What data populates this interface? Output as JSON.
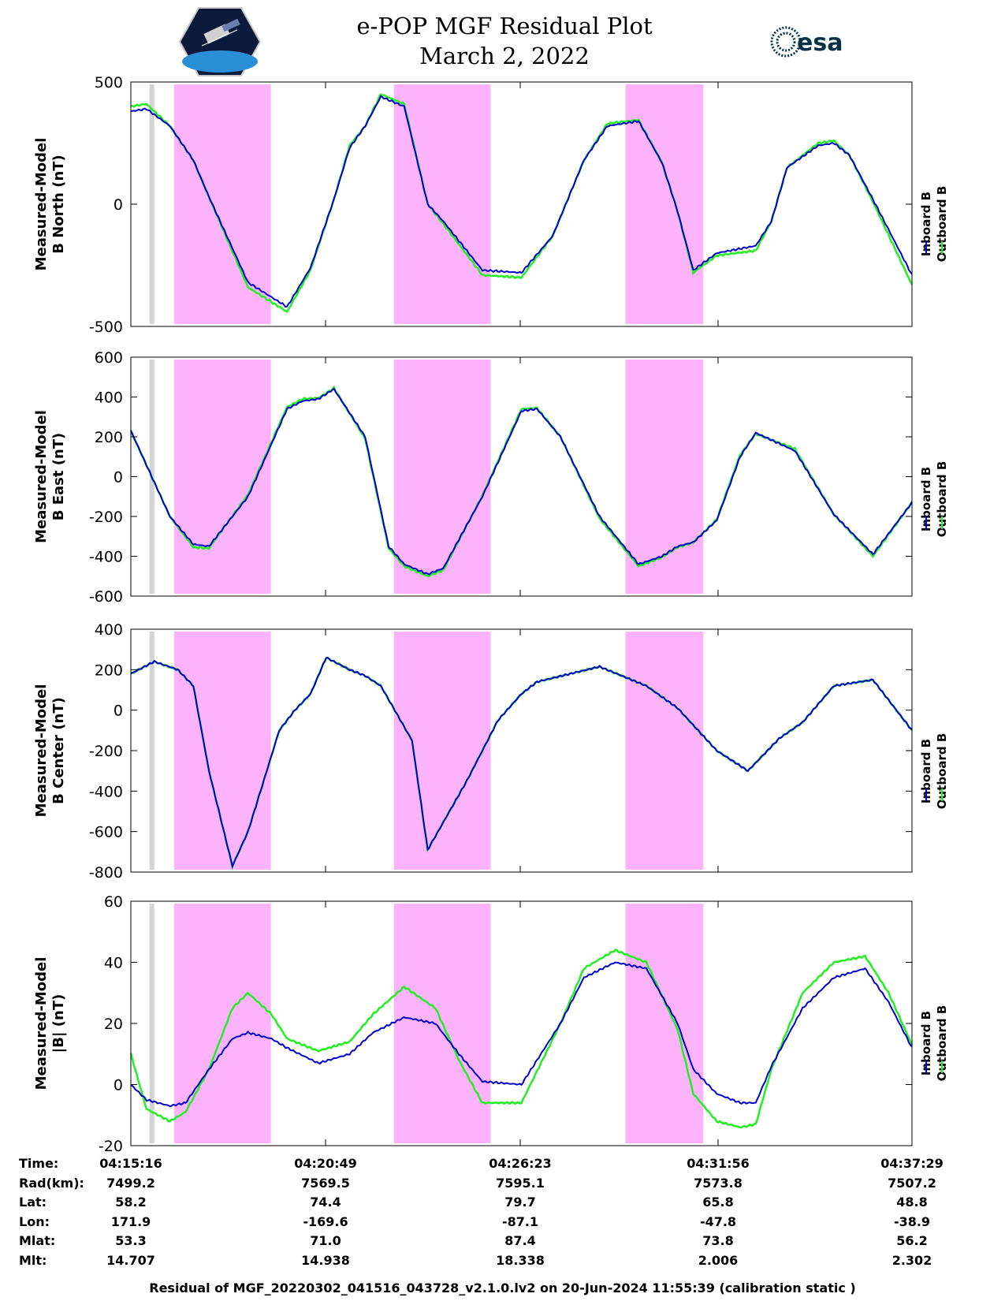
{
  "title": "e-POP MGF Residual Plot",
  "date": "March 2, 2022",
  "logos": {
    "left": "cassiope-satellite-logo",
    "right": "esa"
  },
  "colors": {
    "inboard": "#0000cc",
    "outboard": "#22ee22",
    "shade": "#fcb3fc",
    "gap": "#d3d3d3"
  },
  "legend": [
    "Inboard B",
    "Outboard B"
  ],
  "shaded_intervals_time": [
    [
      "04:16:30",
      "04:19:15"
    ],
    [
      "04:22:45",
      "04:25:30"
    ],
    [
      "04:29:20",
      "04:31:33"
    ]
  ],
  "gray_marker_time": "04:15:52",
  "chart_data": [
    {
      "type": "line",
      "ylabel": [
        "Measured-Model",
        "B North (nT)"
      ],
      "ylim": [
        -500,
        500
      ],
      "yticks": [
        "500",
        "0",
        "-500"
      ],
      "ytick_values": [
        500,
        0,
        -500
      ],
      "x": [
        0,
        0.02,
        0.05,
        0.08,
        0.1,
        0.15,
        0.2,
        0.23,
        0.26,
        0.28,
        0.3,
        0.32,
        0.35,
        0.38,
        0.4,
        0.45,
        0.5,
        0.54,
        0.58,
        0.61,
        0.65,
        0.68,
        0.7,
        0.72,
        0.75,
        0.8,
        0.82,
        0.84,
        0.88,
        0.9,
        0.92,
        0.95,
        1.0
      ],
      "series": [
        {
          "name": "Inboard B",
          "values": [
            380,
            390,
            320,
            180,
            30,
            -320,
            -420,
            -260,
            20,
            230,
            320,
            440,
            400,
            0,
            -70,
            -270,
            -280,
            -130,
            180,
            320,
            340,
            170,
            -30,
            -270,
            -200,
            -170,
            -70,
            150,
            240,
            250,
            200,
            20,
            -290
          ]
        },
        {
          "name": "Outboard B",
          "values": [
            400,
            410,
            320,
            180,
            30,
            -340,
            -440,
            -270,
            20,
            240,
            320,
            450,
            410,
            0,
            -80,
            -290,
            -300,
            -130,
            180,
            330,
            345,
            170,
            -30,
            -280,
            -210,
            -190,
            -70,
            150,
            250,
            260,
            200,
            10,
            -330
          ]
        }
      ]
    },
    {
      "type": "line",
      "ylabel": [
        "Measured-Model",
        "B East (nT)"
      ],
      "ylim": [
        -600,
        600
      ],
      "yticks": [
        "600",
        "400",
        "200",
        "0",
        "-200",
        "-400",
        "-600"
      ],
      "ytick_values": [
        600,
        400,
        200,
        0,
        -200,
        -400,
        -600
      ],
      "x": [
        0,
        0.05,
        0.08,
        0.1,
        0.15,
        0.2,
        0.22,
        0.24,
        0.26,
        0.3,
        0.33,
        0.35,
        0.38,
        0.4,
        0.45,
        0.5,
        0.52,
        0.55,
        0.6,
        0.65,
        0.68,
        0.7,
        0.72,
        0.75,
        0.78,
        0.8,
        0.85,
        0.9,
        0.95,
        1.0
      ],
      "series": [
        {
          "name": "Inboard B",
          "values": [
            230,
            -200,
            -340,
            -350,
            -100,
            340,
            380,
            390,
            440,
            200,
            -350,
            -440,
            -490,
            -460,
            -100,
            330,
            340,
            200,
            -200,
            -440,
            -400,
            -350,
            -330,
            -220,
            100,
            220,
            130,
            -190,
            -390,
            -130
          ]
        },
        {
          "name": "Outboard B",
          "values": [
            230,
            -200,
            -355,
            -360,
            -90,
            350,
            390,
            395,
            445,
            190,
            -360,
            -450,
            -500,
            -470,
            -95,
            340,
            345,
            200,
            -210,
            -450,
            -405,
            -355,
            -330,
            -215,
            110,
            215,
            140,
            -190,
            -400,
            -130
          ]
        }
      ]
    },
    {
      "type": "line",
      "ylabel": [
        "Measured-Model",
        "B Center (nT)"
      ],
      "ylim": [
        -800,
        400
      ],
      "yticks": [
        "400",
        "200",
        "0",
        "-200",
        "-400",
        "-600",
        "-800"
      ],
      "ytick_values": [
        400,
        200,
        0,
        -200,
        -400,
        -600,
        -800
      ],
      "x": [
        0,
        0.03,
        0.06,
        0.08,
        0.1,
        0.13,
        0.15,
        0.19,
        0.21,
        0.23,
        0.25,
        0.28,
        0.3,
        0.32,
        0.36,
        0.38,
        0.43,
        0.47,
        0.5,
        0.52,
        0.6,
        0.66,
        0.7,
        0.75,
        0.79,
        0.83,
        0.86,
        0.9,
        0.95,
        1.0
      ],
      "series": [
        {
          "name": "Inboard B",
          "values": [
            180,
            240,
            200,
            120,
            -300,
            -770,
            -600,
            -100,
            0,
            80,
            260,
            200,
            170,
            120,
            -150,
            -690,
            -350,
            -50,
            80,
            140,
            215,
            120,
            10,
            -200,
            -300,
            -140,
            -60,
            120,
            150,
            -100
          ]
        },
        {
          "name": "Outboard B",
          "values": [
            180,
            240,
            200,
            120,
            -300,
            -770,
            -600,
            -100,
            0,
            80,
            260,
            200,
            170,
            120,
            -150,
            -690,
            -350,
            -50,
            80,
            140,
            215,
            120,
            10,
            -200,
            -300,
            -140,
            -60,
            120,
            150,
            -100
          ]
        }
      ]
    },
    {
      "type": "line",
      "ylabel": [
        "Measured-Model",
        "|B| (nT)"
      ],
      "ylim": [
        -20,
        60
      ],
      "yticks": [
        "60",
        "40",
        "20",
        "0",
        "-20"
      ],
      "ytick_values": [
        60,
        40,
        20,
        0,
        -20
      ],
      "x": [
        0,
        0.02,
        0.05,
        0.07,
        0.1,
        0.13,
        0.15,
        0.18,
        0.2,
        0.24,
        0.28,
        0.31,
        0.35,
        0.39,
        0.42,
        0.45,
        0.5,
        0.55,
        0.58,
        0.62,
        0.66,
        0.7,
        0.72,
        0.75,
        0.78,
        0.8,
        0.82,
        0.86,
        0.9,
        0.94,
        0.97,
        1.0
      ],
      "series": [
        {
          "name": "Inboard B",
          "values": [
            0,
            -5,
            -7,
            -6,
            5,
            15,
            17,
            15,
            12,
            7,
            10,
            17,
            22,
            20,
            10,
            1,
            0,
            20,
            35,
            40,
            38,
            20,
            5,
            -3,
            -6,
            -6,
            6,
            25,
            35,
            38,
            27,
            12
          ]
        },
        {
          "name": "Outboard B",
          "values": [
            10,
            -8,
            -12,
            -9,
            5,
            25,
            30,
            23,
            15,
            11,
            14,
            23,
            32,
            25,
            8,
            -6,
            -6,
            20,
            38,
            44,
            40,
            18,
            -3,
            -12,
            -14,
            -13,
            5,
            30,
            40,
            42,
            30,
            13
          ]
        }
      ]
    }
  ],
  "x_axis": {
    "ticks": [
      "04:15:16",
      "04:20:49",
      "04:26:23",
      "04:31:56",
      "04:37:29"
    ],
    "rows": [
      {
        "label": "Time:",
        "values": [
          "04:15:16",
          "04:20:49",
          "04:26:23",
          "04:31:56",
          "04:37:29"
        ]
      },
      {
        "label": "Rad(km):",
        "values": [
          "7499.2",
          "7569.5",
          "7595.1",
          "7573.8",
          "7507.2"
        ]
      },
      {
        "label": "Lat:",
        "values": [
          "58.2",
          "74.4",
          "79.7",
          "65.8",
          "48.8"
        ]
      },
      {
        "label": "Lon:",
        "values": [
          "171.9",
          "-169.6",
          "-87.1",
          "-47.8",
          "-38.9"
        ]
      },
      {
        "label": "Mlat:",
        "values": [
          "53.3",
          "71.0",
          "87.4",
          "73.8",
          "56.2"
        ]
      },
      {
        "label": "Mlt:",
        "values": [
          "14.707",
          "14.938",
          "18.338",
          "2.006",
          "2.302"
        ]
      }
    ]
  },
  "footer": "Residual of MGF_20220302_041516_043728_v2.1.0.lv2 on 20-Jun-2024 11:55:39 (calibration static )"
}
